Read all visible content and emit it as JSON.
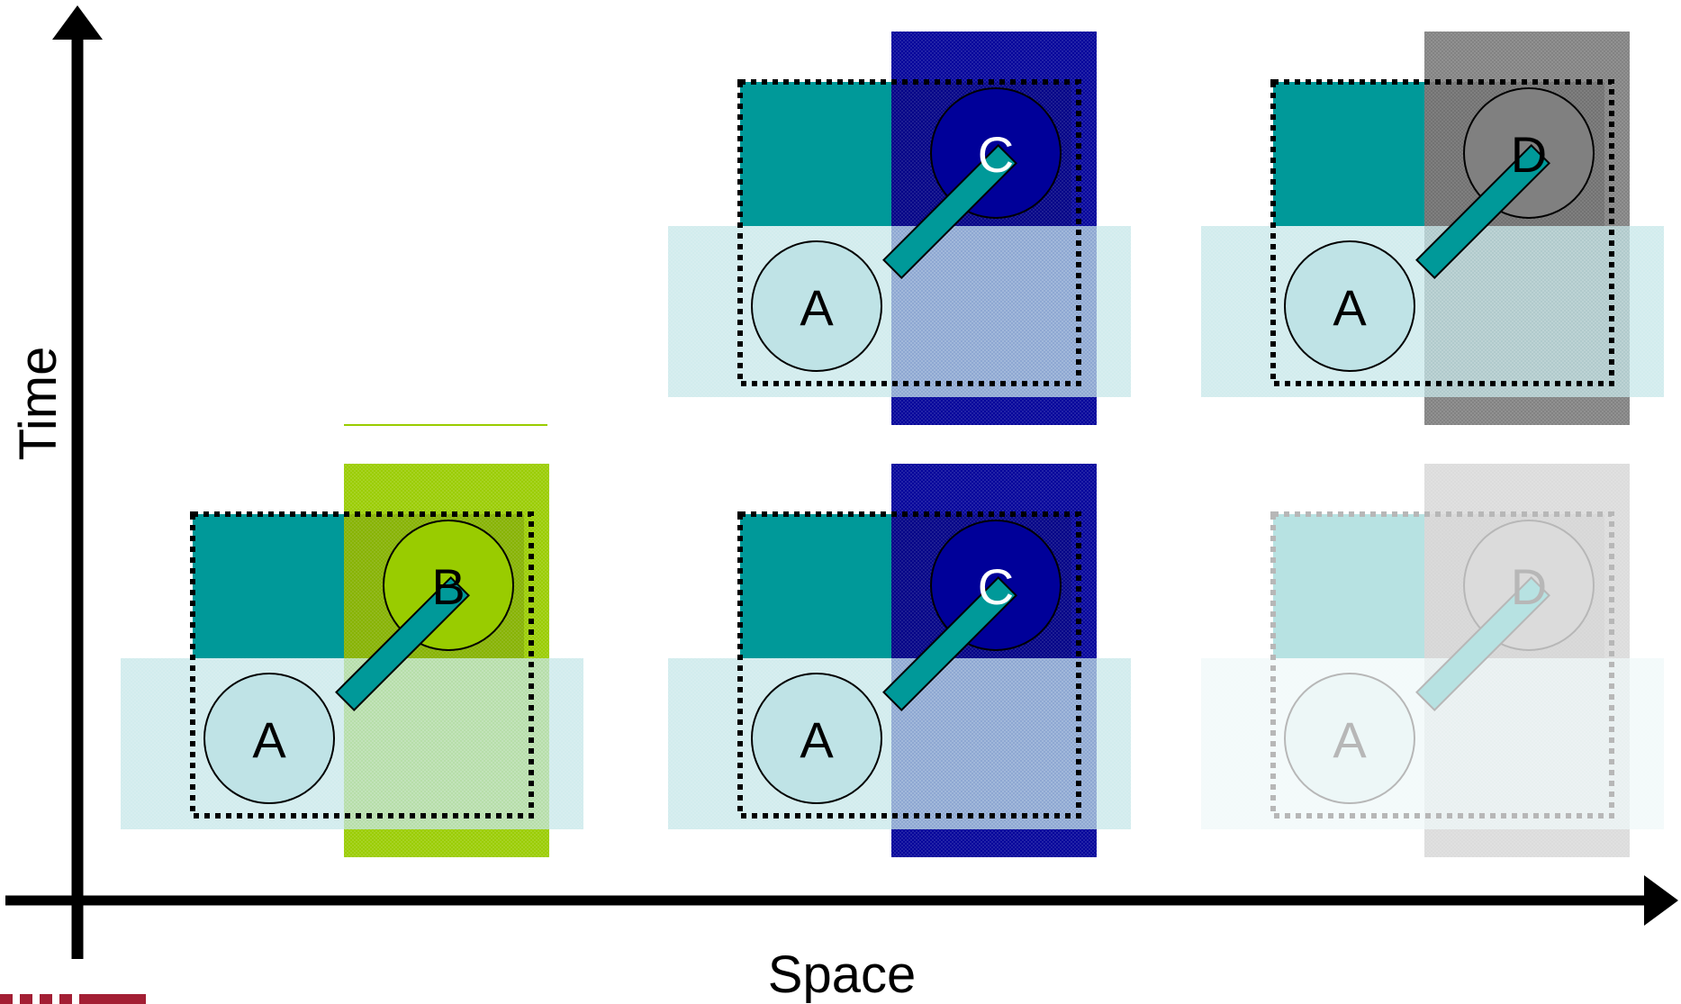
{
  "axes": {
    "x_label": "Space",
    "y_label": "Time"
  },
  "colors": {
    "teal": "#009999",
    "light_teal": "#bfe3e6",
    "green": "#99cc00",
    "navy": "#000099",
    "gray": "#808080",
    "logo_red": "#a31f34"
  },
  "panels": [
    {
      "id": "panel-ab",
      "node_a": "A",
      "node_b": "B",
      "b_color": "#99cc00",
      "faded": false
    },
    {
      "id": "panel-ac-lower",
      "node_a": "A",
      "node_b": "C",
      "b_color": "#000099",
      "faded": false
    },
    {
      "id": "panel-ad-lower",
      "node_a": "A",
      "node_b": "D",
      "b_color": "#808080",
      "faded": true
    },
    {
      "id": "panel-ac-upper",
      "node_a": "A",
      "node_b": "C",
      "b_color": "#000099",
      "faded": false
    },
    {
      "id": "panel-ad-upper",
      "node_a": "A",
      "node_b": "D",
      "b_color": "#808080",
      "faded": false
    }
  ],
  "logo": {
    "icon": "mit-logo-icon"
  }
}
